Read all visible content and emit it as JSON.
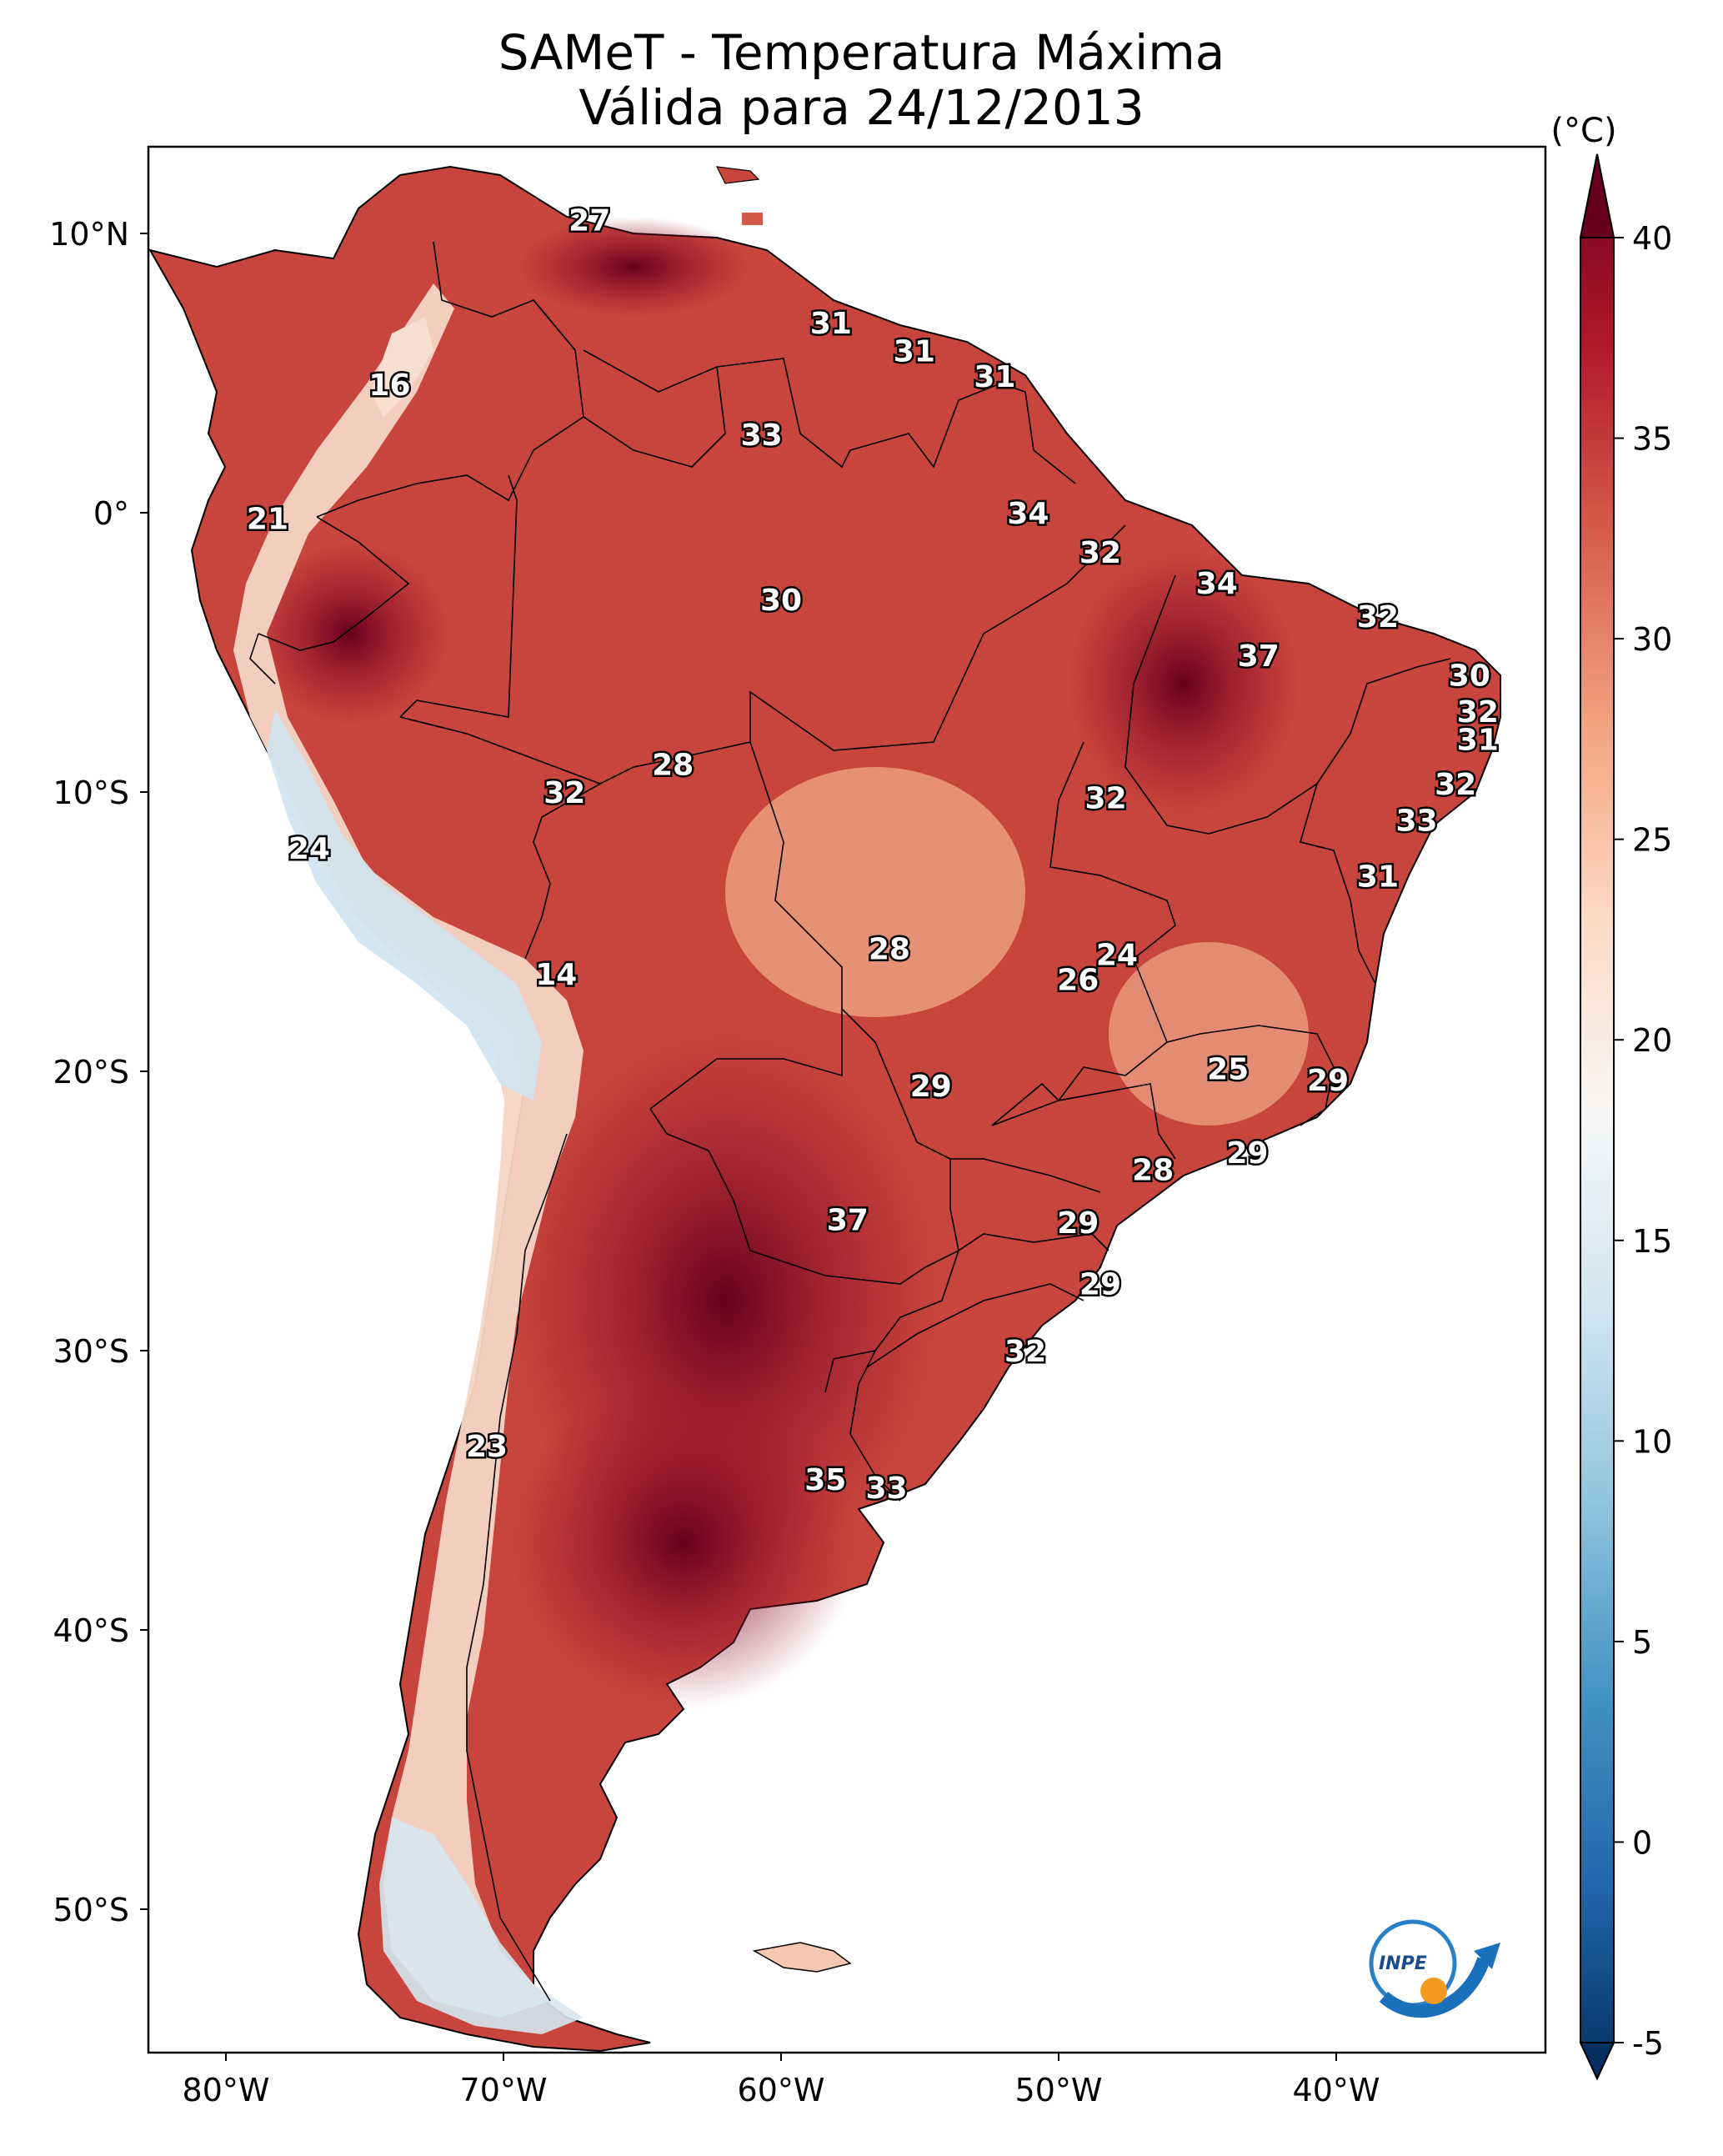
{
  "title": {
    "line1": "SAMeT - Temperatura Máxima",
    "line2": "Válida para 24/12/2013"
  },
  "colorbar": {
    "unit": "(°C)",
    "ticks": [
      "40",
      "35",
      "30",
      "25",
      "20",
      "15",
      "10",
      "5",
      "0",
      "-5"
    ],
    "colors": [
      "#053061",
      "#2166ac",
      "#4393c3",
      "#92c5de",
      "#d1e5f0",
      "#f7f7f7",
      "#fddbc7",
      "#f4a582",
      "#d6604d",
      "#b2182b",
      "#67001f"
    ]
  },
  "axes": {
    "lon_ticks": [
      "80°W",
      "70°W",
      "60°W",
      "50°W",
      "40°W"
    ],
    "lat_ticks": [
      "10°N",
      "0°",
      "10°S",
      "20°S",
      "30°S",
      "40°S",
      "50°S"
    ]
  },
  "map_labels": [
    {
      "value": "27",
      "lat": 10.5,
      "lon": -66.9
    },
    {
      "value": "31",
      "lat": 6.8,
      "lon": -58.2
    },
    {
      "value": "31",
      "lat": 5.8,
      "lon": -55.2
    },
    {
      "value": "31",
      "lat": 4.9,
      "lon": -52.3
    },
    {
      "value": "16",
      "lat": 4.6,
      "lon": -74.1
    },
    {
      "value": "33",
      "lat": 2.8,
      "lon": -60.7
    },
    {
      "value": "34",
      "lat": 0.0,
      "lon": -51.1
    },
    {
      "value": "21",
      "lat": -0.2,
      "lon": -78.5
    },
    {
      "value": "32",
      "lat": -1.4,
      "lon": -48.5
    },
    {
      "value": "34",
      "lat": -2.5,
      "lon": -44.3
    },
    {
      "value": "30",
      "lat": -3.1,
      "lon": -60.0
    },
    {
      "value": "32",
      "lat": -3.7,
      "lon": -38.5
    },
    {
      "value": "37",
      "lat": -5.1,
      "lon": -42.8
    },
    {
      "value": "30",
      "lat": -5.8,
      "lon": -35.2
    },
    {
      "value": "32",
      "lat": -7.1,
      "lon": -34.9
    },
    {
      "value": "31",
      "lat": -8.1,
      "lon": -34.9
    },
    {
      "value": "28",
      "lat": -9.0,
      "lon": -63.9
    },
    {
      "value": "32",
      "lat": -9.7,
      "lon": -35.7
    },
    {
      "value": "32",
      "lat": -10.0,
      "lon": -67.8
    },
    {
      "value": "32",
      "lat": -10.2,
      "lon": -48.3
    },
    {
      "value": "33",
      "lat": -11.0,
      "lon": -37.1
    },
    {
      "value": "24",
      "lat": -12.0,
      "lon": -77.0
    },
    {
      "value": "31",
      "lat": -13.0,
      "lon": -38.5
    },
    {
      "value": "28",
      "lat": -15.6,
      "lon": -56.1
    },
    {
      "value": "24",
      "lat": -15.8,
      "lon": -47.9
    },
    {
      "value": "14",
      "lat": -16.5,
      "lon": -68.1
    },
    {
      "value": "26",
      "lat": -16.7,
      "lon": -49.3
    },
    {
      "value": "25",
      "lat": -19.9,
      "lon": -43.9
    },
    {
      "value": "29",
      "lat": -20.3,
      "lon": -40.3
    },
    {
      "value": "29",
      "lat": -20.5,
      "lon": -54.6
    },
    {
      "value": "29",
      "lat": -22.9,
      "lon": -43.2
    },
    {
      "value": "28",
      "lat": -23.5,
      "lon": -46.6
    },
    {
      "value": "37",
      "lat": -25.3,
      "lon": -57.6
    },
    {
      "value": "29",
      "lat": -25.4,
      "lon": -49.3
    },
    {
      "value": "29",
      "lat": -27.6,
      "lon": -48.5
    },
    {
      "value": "32",
      "lat": -30.0,
      "lon": -51.2
    },
    {
      "value": "23",
      "lat": -33.4,
      "lon": -70.6
    },
    {
      "value": "35",
      "lat": -34.6,
      "lon": -58.4
    },
    {
      "value": "33",
      "lat": -34.9,
      "lon": -56.2
    }
  ]
}
